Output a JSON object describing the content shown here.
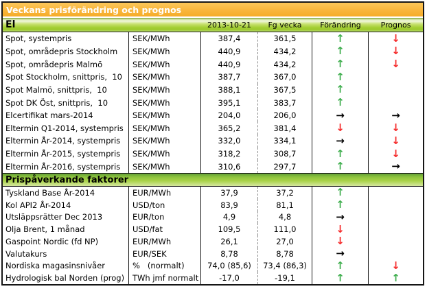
{
  "title": "Veckans prisförändring och prognos",
  "columns": [
    "2013-10-21",
    "Fg vecka",
    "Förändring",
    "Prognos"
  ],
  "colors": {
    "header_orange": "#f9b63c",
    "section_green": "#a4cf34",
    "up_arrow": "#3fae4e",
    "down_arrow": "#f52c2c",
    "right_arrow": "#000000"
  },
  "arrows": {
    "up": "↑",
    "down": "↓",
    "right": "→"
  },
  "sections": [
    {
      "header": "El",
      "rows": [
        {
          "name": "Spot, systempris",
          "unit": "SEK/MWh",
          "current": "387,4",
          "previous": "361,5",
          "change": "up",
          "forecast": "down"
        },
        {
          "name": "Spot, områdepris Stockholm",
          "unit": "SEK/MWh",
          "current": "440,9",
          "previous": "434,2",
          "change": "up",
          "forecast": "down"
        },
        {
          "name": "Spot, områdepris Malmö",
          "unit": "SEK/MWh",
          "current": "440,9",
          "previous": "434,2",
          "change": "up",
          "forecast": "down"
        },
        {
          "name": "Spot Stockholm, snittpris,  10",
          "unit": "SEK/MWh",
          "current": "387,7",
          "previous": "367,0",
          "change": "up",
          "forecast": ""
        },
        {
          "name": "Spot Malmö, snittpris,  10",
          "unit": "SEK/MWh",
          "current": "388,1",
          "previous": "367,5",
          "change": "up",
          "forecast": ""
        },
        {
          "name": "Spot DK Öst, snittpris,  10",
          "unit": "SEK/MWh",
          "current": "395,1",
          "previous": "383,7",
          "change": "up",
          "forecast": ""
        },
        {
          "name": "Elcertifikat mars-2014",
          "unit": "SEK/MWh",
          "current": "204,0",
          "previous": "206,0",
          "change": "right",
          "forecast": "right"
        },
        {
          "name": "Eltermin Q1-2014, systempris",
          "unit": "SEK/MWh",
          "current": "365,2",
          "previous": "381,4",
          "change": "down",
          "forecast": "down"
        },
        {
          "name": "Eltermin År-2014, systempris",
          "unit": "SEK/MWh",
          "current": "332,0",
          "previous": "334,1",
          "change": "right",
          "forecast": "down"
        },
        {
          "name": "Eltermin År-2015, systempris",
          "unit": "SEK/MWh",
          "current": "318,2",
          "previous": "308,7",
          "change": "up",
          "forecast": "down"
        },
        {
          "name": "Eltermin År-2016, systempris",
          "unit": "SEK/MWh",
          "current": "310,6",
          "previous": "297,7",
          "change": "up",
          "forecast": "right"
        }
      ]
    },
    {
      "header": "Prispåverkande faktorer",
      "rows": [
        {
          "name": "Tyskland Base År-2014",
          "unit": "EUR/MWh",
          "current": "37,9",
          "previous": "37,2",
          "change": "up",
          "forecast": ""
        },
        {
          "name": "Kol API2 År-2014",
          "unit": "USD/ton",
          "current": "83,9",
          "previous": "81,1",
          "change": "up",
          "forecast": ""
        },
        {
          "name": "Utsläppsrätter Dec 2013",
          "unit": "EUR/ton",
          "current": "4,9",
          "previous": "4,8",
          "change": "right",
          "forecast": ""
        },
        {
          "name": "Olja Brent, 1 månad",
          "unit": "USD/fat",
          "current": "109,5",
          "previous": "111,0",
          "change": "down",
          "forecast": ""
        },
        {
          "name": "Gaspoint Nordic (fd NP)",
          "unit": "EUR/MWh",
          "current": "26,1",
          "previous": "27,0",
          "change": "down",
          "forecast": ""
        },
        {
          "name": "Valutakurs",
          "unit": "EUR/SEK",
          "current": "8,78",
          "previous": "8,78",
          "change": "right",
          "forecast": ""
        },
        {
          "name": "Nordiska magasinsnivåer",
          "unit": "%   (normalt)",
          "current": "74,0 (85,6)",
          "previous": "73,4 (86,3)",
          "change": "up",
          "forecast": "down"
        },
        {
          "name": "Hydrologisk bal Norden (prog)",
          "unit": "TWh jmf normalt",
          "current": "-17,0",
          "previous": "-19,1",
          "change": "up",
          "forecast": "up"
        }
      ]
    }
  ]
}
